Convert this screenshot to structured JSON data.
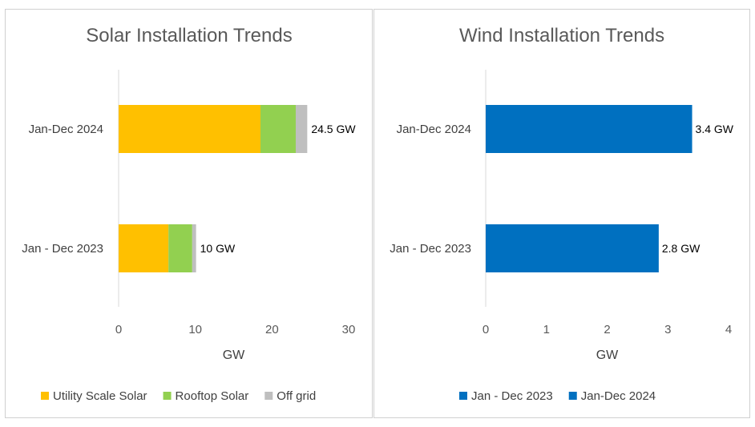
{
  "colors": {
    "utility": "#FFC000",
    "rooftop": "#92D050",
    "offgrid": "#BFBFBF",
    "wind": "#0070C0",
    "axis": "#d9d9d9"
  },
  "chart_data": [
    {
      "type": "bar",
      "orientation": "horizontal",
      "stacked": true,
      "title": "Solar Installation Trends",
      "xlabel": "GW",
      "ylabel": "",
      "xlim": [
        0,
        30
      ],
      "xticks": [
        "0",
        "10",
        "20",
        "30"
      ],
      "categories": [
        "Jan-Dec 2024",
        "Jan - Dec 2023"
      ],
      "series": [
        {
          "name": "Utility Scale Solar",
          "color": "#FFC000",
          "values": [
            18.5,
            6.5
          ]
        },
        {
          "name": "Rooftop Solar",
          "color": "#92D050",
          "values": [
            4.6,
            3.1
          ]
        },
        {
          "name": "Off grid",
          "color": "#BFBFBF",
          "values": [
            1.5,
            0.5
          ]
        }
      ],
      "data_labels": [
        "24.5 GW",
        "10 GW"
      ],
      "legend": "bottom",
      "grid": false
    },
    {
      "type": "bar",
      "orientation": "horizontal",
      "stacked": false,
      "title": "Wind Installation Trends",
      "xlabel": "GW",
      "ylabel": "",
      "xlim": [
        0,
        4
      ],
      "xticks": [
        "0",
        "1",
        "2",
        "3",
        "4"
      ],
      "categories": [
        "Jan-Dec 2024",
        "Jan - Dec 2023"
      ],
      "values": [
        3.4,
        2.85
      ],
      "color": "#0070C0",
      "data_labels": [
        "3.4 GW",
        "2.8 GW"
      ],
      "legend_entries": [
        "Jan - Dec 2023",
        "Jan-Dec 2024"
      ],
      "legend": "bottom",
      "grid": false
    }
  ]
}
